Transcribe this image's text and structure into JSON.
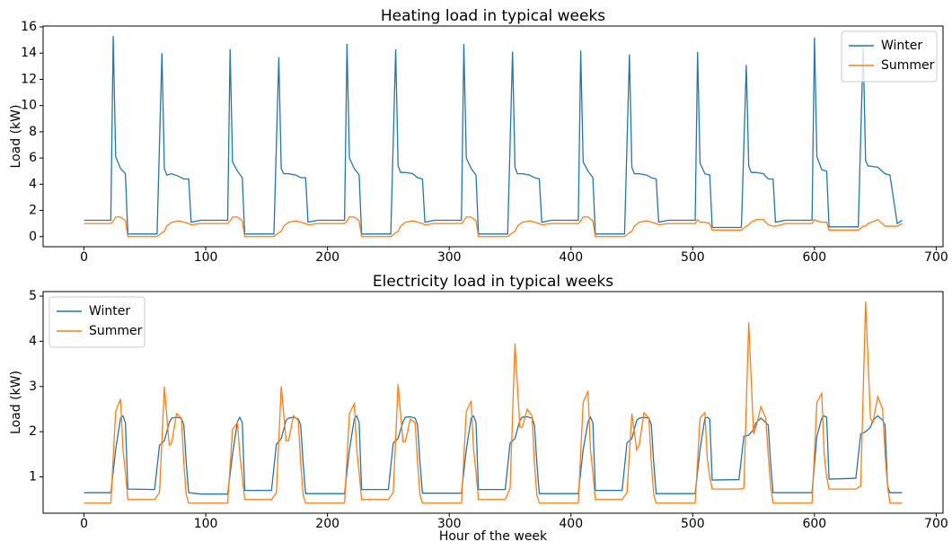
{
  "chart_data": [
    {
      "type": "line",
      "title": "Heating load in typical weeks",
      "ylabel": "Load (kW)",
      "legend": "upper right",
      "xlim": [
        -33.6,
        705.6
      ],
      "ylim": [
        -0.77,
        16.07
      ],
      "xticks": [
        0,
        100,
        200,
        300,
        400,
        500,
        600,
        700
      ],
      "yticks": [
        0,
        2,
        4,
        6,
        8,
        10,
        12,
        14,
        16
      ],
      "x": [
        0,
        22,
        24,
        26,
        30,
        34,
        36,
        60,
        64,
        66,
        68,
        72,
        78,
        82,
        86,
        88,
        96,
        118,
        120,
        122,
        126,
        130,
        132,
        156,
        160,
        162,
        164,
        168,
        174,
        178,
        182,
        184,
        192,
        214,
        216,
        218,
        222,
        226,
        228,
        252,
        256,
        258,
        260,
        264,
        270,
        274,
        278,
        280,
        288,
        310,
        312,
        314,
        318,
        322,
        324,
        348,
        352,
        354,
        356,
        360,
        366,
        370,
        374,
        376,
        384,
        406,
        408,
        410,
        414,
        418,
        420,
        444,
        448,
        450,
        452,
        456,
        462,
        466,
        470,
        472,
        480,
        502,
        504,
        506,
        510,
        514,
        516,
        540,
        544,
        546,
        548,
        552,
        558,
        562,
        566,
        568,
        576,
        598,
        600,
        602,
        606,
        610,
        612,
        636,
        640,
        642,
        644,
        652,
        658,
        662,
        668,
        672
      ],
      "series": [
        {
          "name": "Winter",
          "color": "#1f77b4",
          "values": [
            1.25,
            1.25,
            15.3,
            6.1,
            5.2,
            4.8,
            0.2,
            0.2,
            14.0,
            5.2,
            4.7,
            4.8,
            4.6,
            4.4,
            4.4,
            1.1,
            1.25,
            1.25,
            14.3,
            5.7,
            5.0,
            4.5,
            0.2,
            0.2,
            13.7,
            5.2,
            4.8,
            4.8,
            4.7,
            4.5,
            4.5,
            1.1,
            1.25,
            1.25,
            14.7,
            6.0,
            5.2,
            4.7,
            0.2,
            0.2,
            14.3,
            5.4,
            4.9,
            4.9,
            4.8,
            4.5,
            4.4,
            1.1,
            1.25,
            1.25,
            14.7,
            6.0,
            5.2,
            4.7,
            0.2,
            0.2,
            14.1,
            5.3,
            4.8,
            4.8,
            4.7,
            4.5,
            4.4,
            1.1,
            1.25,
            1.25,
            14.2,
            5.7,
            5.0,
            4.5,
            0.2,
            0.2,
            13.9,
            5.3,
            4.8,
            4.8,
            4.7,
            4.5,
            4.4,
            1.1,
            1.25,
            1.25,
            14.1,
            5.6,
            4.8,
            4.7,
            0.7,
            0.7,
            13.1,
            5.4,
            4.9,
            4.9,
            4.8,
            4.4,
            4.4,
            1.1,
            1.25,
            1.25,
            15.2,
            6.1,
            5.1,
            5.0,
            0.75,
            0.75,
            14.5,
            5.8,
            5.4,
            5.3,
            4.8,
            4.7,
            1.0,
            1.25
          ]
        },
        {
          "name": "Summer",
          "color": "#ff7f0e",
          "values": [
            1.0,
            1.0,
            1.2,
            1.5,
            1.5,
            1.2,
            0,
            0,
            0.3,
            0.4,
            0.8,
            1.1,
            1.2,
            1.1,
            1.0,
            0.9,
            1.0,
            1.0,
            1.2,
            1.5,
            1.5,
            1.2,
            0,
            0,
            0.3,
            0.4,
            0.8,
            1.1,
            1.2,
            1.1,
            1.0,
            0.9,
            1.0,
            1.0,
            1.2,
            1.5,
            1.5,
            1.2,
            0,
            0,
            0.3,
            0.4,
            0.8,
            1.1,
            1.2,
            1.1,
            1.0,
            0.9,
            1.0,
            1.0,
            1.2,
            1.5,
            1.5,
            1.2,
            0,
            0,
            0.3,
            0.4,
            0.8,
            1.1,
            1.2,
            1.1,
            1.0,
            0.9,
            1.0,
            1.0,
            1.2,
            1.5,
            1.5,
            1.2,
            0,
            0,
            0.3,
            0.4,
            0.8,
            1.1,
            1.2,
            1.1,
            1.0,
            0.9,
            1.0,
            1.0,
            1.3,
            1.1,
            1.1,
            1.0,
            0.5,
            0.5,
            0.8,
            0.9,
            1.1,
            1.3,
            1.3,
            0.9,
            0.8,
            0.8,
            1.0,
            1.0,
            1.3,
            1.2,
            1.1,
            1.1,
            0.5,
            0.5,
            0.8,
            0.8,
            1.0,
            1.3,
            0.8,
            0.8,
            0.8,
            1.0
          ]
        }
      ]
    },
    {
      "type": "line",
      "title": "Electricity load in typical weeks",
      "ylabel": "Load (kW)",
      "xlabel": "Hour of the week",
      "legend": "upper left",
      "xlim": [
        -33.6,
        705.6
      ],
      "ylim": [
        0.197,
        5.1
      ],
      "xticks": [
        0,
        100,
        200,
        300,
        400,
        500,
        600,
        700
      ],
      "yticks": [
        1,
        2,
        3,
        4,
        5
      ],
      "x": [
        0,
        22,
        26,
        30,
        32,
        34,
        36,
        58,
        62,
        66,
        70,
        72,
        76,
        80,
        82,
        84,
        86,
        96,
        118,
        122,
        126,
        128,
        130,
        132,
        154,
        158,
        162,
        166,
        168,
        172,
        176,
        178,
        180,
        182,
        192,
        214,
        218,
        222,
        224,
        226,
        228,
        250,
        254,
        258,
        262,
        264,
        268,
        272,
        274,
        276,
        278,
        288,
        310,
        314,
        318,
        320,
        322,
        324,
        346,
        350,
        354,
        358,
        360,
        364,
        368,
        370,
        372,
        374,
        384,
        406,
        410,
        414,
        416,
        418,
        420,
        442,
        446,
        450,
        454,
        456,
        460,
        464,
        466,
        468,
        470,
        480,
        502,
        506,
        510,
        512,
        514,
        516,
        538,
        542,
        546,
        550,
        552,
        556,
        560,
        562,
        564,
        566,
        576,
        598,
        602,
        606,
        608,
        610,
        612,
        634,
        638,
        642,
        646,
        648,
        652,
        656,
        658,
        660,
        662,
        672
      ],
      "series": [
        {
          "name": "Winter",
          "color": "#1f77b4",
          "values": [
            0.65,
            0.65,
            1.6,
            2.3,
            2.35,
            2.2,
            0.73,
            0.72,
            1.7,
            1.8,
            2.2,
            2.3,
            2.32,
            2.3,
            2.15,
            1.3,
            0.65,
            0.62,
            0.62,
            1.5,
            2.22,
            2.32,
            2.2,
            0.7,
            0.7,
            1.72,
            1.85,
            2.25,
            2.3,
            2.32,
            2.28,
            2.15,
            1.3,
            0.63,
            0.63,
            0.63,
            1.6,
            2.28,
            2.35,
            2.2,
            0.72,
            0.72,
            1.75,
            1.85,
            2.22,
            2.32,
            2.33,
            2.3,
            2.15,
            1.3,
            0.64,
            0.64,
            0.64,
            1.6,
            2.3,
            2.35,
            2.2,
            0.72,
            0.72,
            1.75,
            1.85,
            2.25,
            2.32,
            2.33,
            2.3,
            2.15,
            1.3,
            0.63,
            0.63,
            0.63,
            1.6,
            2.22,
            2.32,
            2.2,
            0.7,
            0.7,
            1.75,
            1.85,
            2.25,
            2.3,
            2.32,
            2.3,
            2.15,
            1.3,
            0.63,
            0.63,
            0.63,
            1.6,
            2.3,
            2.32,
            2.28,
            0.93,
            0.94,
            1.9,
            1.92,
            2.05,
            2.2,
            2.3,
            2.2,
            2.15,
            1.3,
            0.65,
            0.65,
            0.65,
            1.9,
            2.3,
            2.35,
            2.32,
            0.95,
            0.97,
            1.95,
            2.0,
            2.1,
            2.25,
            2.35,
            2.25,
            2.15,
            0.8,
            0.65,
            0.65
          ]
        },
        {
          "name": "Summer",
          "color": "#ff7f0e",
          "values": [
            0.42,
            0.42,
            2.45,
            2.72,
            1.6,
            1.1,
            0.5,
            0.5,
            0.65,
            3.0,
            1.7,
            1.75,
            2.4,
            2.3,
            1.3,
            0.6,
            0.42,
            0.42,
            0.42,
            2.05,
            2.2,
            1.5,
            1.0,
            0.5,
            0.5,
            0.65,
            3.0,
            1.8,
            1.8,
            2.35,
            2.25,
            1.3,
            0.6,
            0.42,
            0.42,
            0.42,
            2.4,
            2.62,
            1.6,
            1.1,
            0.5,
            0.5,
            0.65,
            3.05,
            1.78,
            1.78,
            2.28,
            2.2,
            1.3,
            0.6,
            0.42,
            0.42,
            0.42,
            2.45,
            2.68,
            1.6,
            1.1,
            0.5,
            0.5,
            0.75,
            3.95,
            2.1,
            2.1,
            2.5,
            2.35,
            1.3,
            0.6,
            0.42,
            0.42,
            0.42,
            2.65,
            2.9,
            1.6,
            1.1,
            0.5,
            0.5,
            0.65,
            2.4,
            1.6,
            1.7,
            2.42,
            2.3,
            1.3,
            0.6,
            0.42,
            0.42,
            0.42,
            2.3,
            2.42,
            1.4,
            1.0,
            0.73,
            0.73,
            0.75,
            4.42,
            1.95,
            2.1,
            2.55,
            2.3,
            1.5,
            0.8,
            0.42,
            0.42,
            0.42,
            2.65,
            2.85,
            1.5,
            1.0,
            0.73,
            0.73,
            0.8,
            4.88,
            2.3,
            2.2,
            2.78,
            2.5,
            1.5,
            0.8,
            0.42,
            0.42
          ]
        }
      ]
    }
  ]
}
